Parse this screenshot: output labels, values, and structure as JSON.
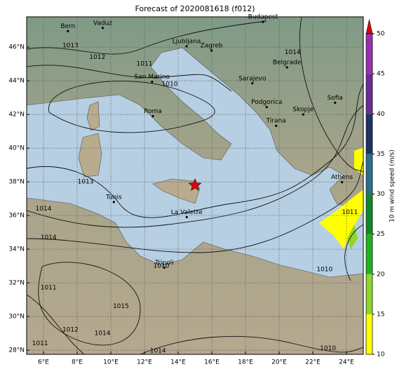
{
  "chart_data": {
    "type": "map",
    "title": "Forecast of 2020081618 (f012)",
    "xlim": [
      5,
      25
    ],
    "ylim": [
      27.75,
      47.8
    ],
    "xticks": [
      {
        "value": 6,
        "label": "6°E"
      },
      {
        "value": 8,
        "label": "8°E"
      },
      {
        "value": 10,
        "label": "10°E"
      },
      {
        "value": 12,
        "label": "12°E"
      },
      {
        "value": 14,
        "label": "14°E"
      },
      {
        "value": 16,
        "label": "16°E"
      },
      {
        "value": 18,
        "label": "18°E"
      },
      {
        "value": 20,
        "label": "20°E"
      },
      {
        "value": 22,
        "label": "22°E"
      },
      {
        "value": 24,
        "label": "24°E"
      }
    ],
    "yticks": [
      {
        "value": 28,
        "label": "28°N"
      },
      {
        "value": 30,
        "label": "30°N"
      },
      {
        "value": 32,
        "label": "32°N"
      },
      {
        "value": 34,
        "label": "34°N"
      },
      {
        "value": 36,
        "label": "36°N"
      },
      {
        "value": 38,
        "label": "38°N"
      },
      {
        "value": 40,
        "label": "40°N"
      },
      {
        "value": 42,
        "label": "42°N"
      },
      {
        "value": 44,
        "label": "44°N"
      },
      {
        "value": 46,
        "label": "46°N"
      }
    ],
    "grid": true,
    "cities": [
      {
        "name": "Bern",
        "lon": 7.45,
        "lat": 46.95
      },
      {
        "name": "Vaduz",
        "lon": 9.52,
        "lat": 47.14
      },
      {
        "name": "Budapest",
        "lon": 19.04,
        "lat": 47.5
      },
      {
        "name": "Ljubljana",
        "lon": 14.5,
        "lat": 46.05
      },
      {
        "name": "Zagreb",
        "lon": 15.98,
        "lat": 45.8
      },
      {
        "name": "San Marino",
        "lon": 12.45,
        "lat": 43.94
      },
      {
        "name": "Belgrade",
        "lon": 20.46,
        "lat": 44.8
      },
      {
        "name": "Sarajevo",
        "lon": 18.41,
        "lat": 43.85
      },
      {
        "name": "Roma",
        "lon": 12.5,
        "lat": 41.9
      },
      {
        "name": "Podgorica",
        "lon": 19.26,
        "lat": 42.44
      },
      {
        "name": "Skopje",
        "lon": 21.43,
        "lat": 42.0
      },
      {
        "name": "Tirana",
        "lon": 19.82,
        "lat": 41.33
      },
      {
        "name": "Sofia",
        "lon": 23.32,
        "lat": 42.7
      },
      {
        "name": "Tunis",
        "lon": 10.18,
        "lat": 36.8
      },
      {
        "name": "La Valette",
        "lon": 14.51,
        "lat": 35.9
      },
      {
        "name": "Athens",
        "lon": 23.73,
        "lat": 37.98
      },
      {
        "name": "Tripoli",
        "lon": 13.18,
        "lat": 32.9
      }
    ],
    "marker": {
      "lon": 15,
      "lat": 37.8,
      "color": "#e8000b"
    },
    "isobar_labels": [
      {
        "value": 1013,
        "lon": 7.6,
        "lat": 46.1
      },
      {
        "value": 1012,
        "lon": 9.2,
        "lat": 45.4
      },
      {
        "value": 1011,
        "lon": 12.0,
        "lat": 45.0
      },
      {
        "value": 1010,
        "lon": 13.5,
        "lat": 43.8
      },
      {
        "value": 1013,
        "lon": 8.5,
        "lat": 38.0
      },
      {
        "value": 1014,
        "lon": 6.0,
        "lat": 36.4
      },
      {
        "value": 1014,
        "lon": 6.3,
        "lat": 34.7
      },
      {
        "value": 1011,
        "lon": 6.3,
        "lat": 31.7
      },
      {
        "value": 1015,
        "lon": 10.6,
        "lat": 30.6
      },
      {
        "value": 1012,
        "lon": 7.6,
        "lat": 29.2
      },
      {
        "value": 1014,
        "lon": 9.5,
        "lat": 29.0
      },
      {
        "value": 1011,
        "lon": 5.8,
        "lat": 28.4
      },
      {
        "value": 1014,
        "lon": 12.8,
        "lat": 27.95
      },
      {
        "value": 1010,
        "lon": 13.0,
        "lat": 33.0
      },
      {
        "value": 1010,
        "lon": 22.9,
        "lat": 28.1
      },
      {
        "value": 1010,
        "lon": 22.7,
        "lat": 32.8
      },
      {
        "value": 1014,
        "lon": 20.8,
        "lat": 45.7
      },
      {
        "value": 1011,
        "lon": 24.2,
        "lat": 36.2
      }
    ],
    "colorbar": {
      "label": "10 m wind speed (m/s)",
      "levels": [
        10,
        15,
        20,
        25,
        30,
        35,
        40,
        45,
        50
      ],
      "colors": [
        "#ffff00",
        "#8fd62a",
        "#1fb41f",
        "#0f8a2a",
        "#2d6e8c",
        "#1e3462",
        "#6a2d9a",
        "#9a30b0"
      ],
      "extend_color": "#e0000f",
      "ticks": [
        10,
        15,
        20,
        25,
        30,
        35,
        40,
        45,
        50
      ]
    }
  }
}
